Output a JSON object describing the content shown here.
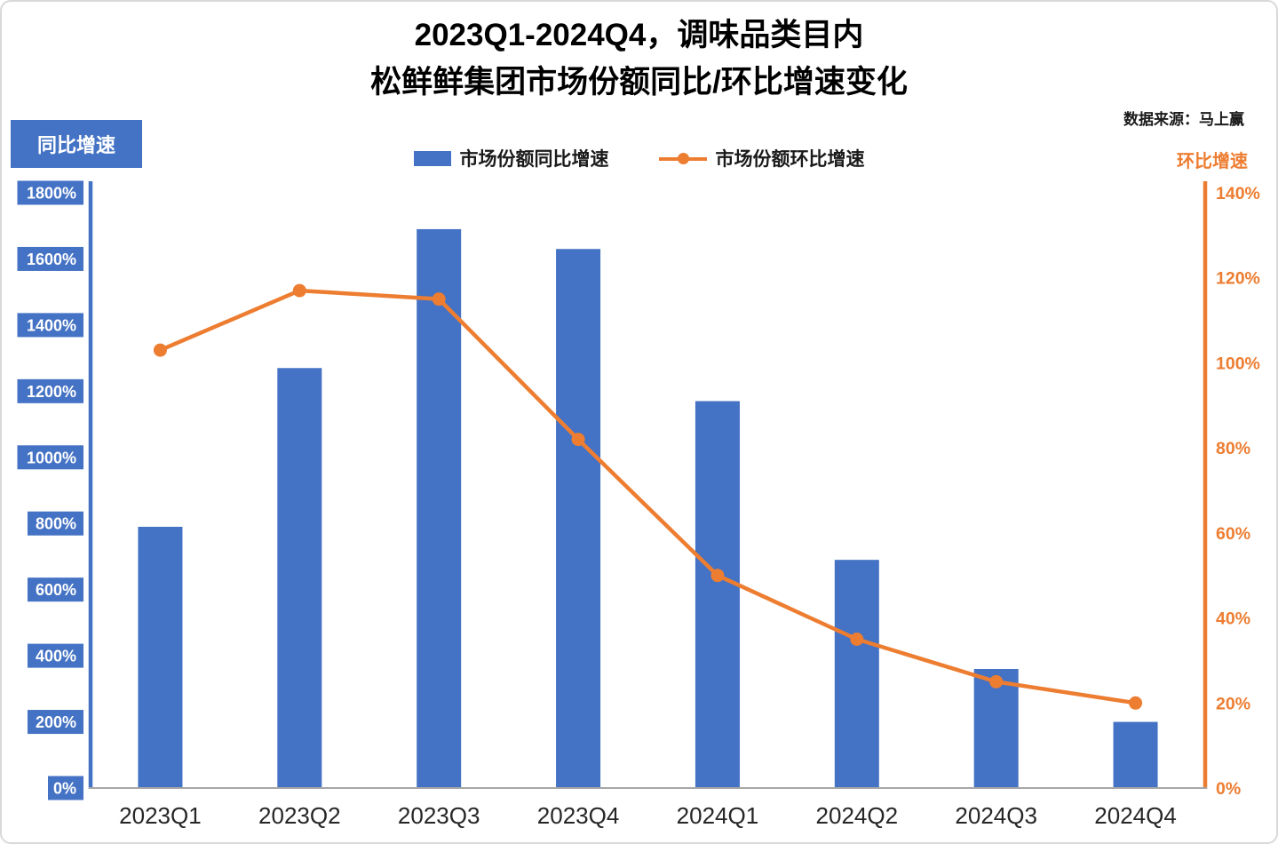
{
  "title": {
    "line1": "2023Q1-2024Q4，调味品类目内",
    "line2": "松鲜鲜集团市场份额同比/环比增速变化"
  },
  "source": "数据来源：马上赢",
  "axes": {
    "left_title": "同比增速",
    "right_title": "环比增速"
  },
  "legend": {
    "bar_label": "市场份额同比增速",
    "line_label": "市场份额环比增速"
  },
  "colors": {
    "bar": "#4472C4",
    "line": "#ED7D31",
    "tick_label_text": "#ffffff",
    "x_label": "#262626",
    "bottom_axis": "#A6A6A6"
  },
  "chart_data": {
    "type": "bar+line combo, dual axis",
    "title": "2023Q1-2024Q4，调味品类目内 松鲜鲜集团市场份额同比/环比增速变化",
    "categories": [
      "2023Q1",
      "2023Q2",
      "2023Q3",
      "2023Q4",
      "2024Q1",
      "2024Q2",
      "2024Q3",
      "2024Q4"
    ],
    "series": [
      {
        "name": "市场份额同比增速",
        "type": "bar",
        "axis": "left",
        "color": "#4472C4",
        "unit": "%",
        "values": [
          790,
          1270,
          1690,
          1630,
          1170,
          690,
          360,
          200
        ]
      },
      {
        "name": "市场份额环比增速",
        "type": "line",
        "axis": "right",
        "color": "#ED7D31",
        "unit": "%",
        "values": [
          103,
          117,
          115,
          82,
          50,
          35,
          25,
          20
        ]
      }
    ],
    "left_axis": {
      "title": "同比增速",
      "min": 0,
      "max": 1800,
      "step": 200,
      "suffix": "%"
    },
    "right_axis": {
      "title": "环比增速",
      "min": 0,
      "max": 140,
      "step": 20,
      "suffix": "%"
    },
    "grid": false,
    "legend_position": "top-center"
  }
}
